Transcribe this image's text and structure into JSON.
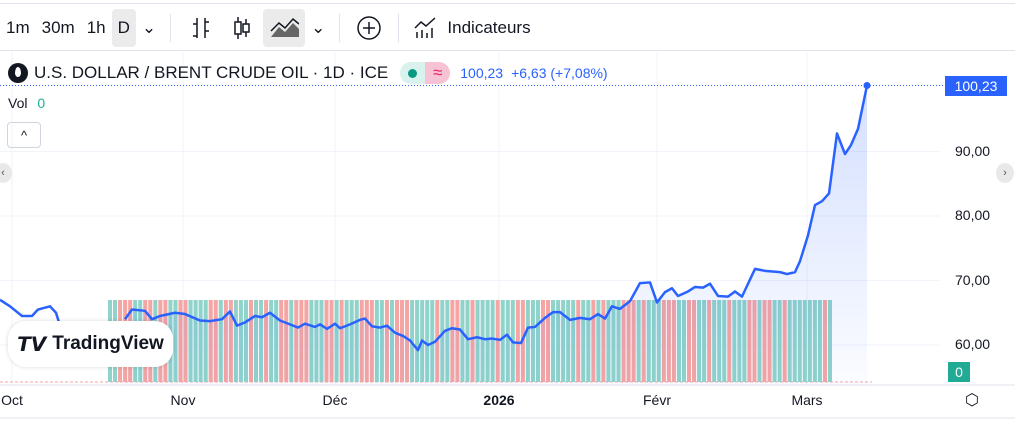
{
  "toolbar": {
    "intervals": [
      "1m",
      "30m",
      "1h",
      "D"
    ],
    "indicators_label": "Indicateurs"
  },
  "legend": {
    "title": "U.S. DOLLAR / BRENT CRUDE OIL · 1D · ICE",
    "last": "100,23",
    "change": "+6,63 (+7,08%)",
    "vol_label": "Vol",
    "vol_value": "0",
    "pill_icon": "≈"
  },
  "logo": "TradingView",
  "colors": {
    "line": "#2962ff",
    "up": "#8fd3cb",
    "down": "#f5a5a3",
    "vol_badge": "#22ab94"
  },
  "chart_data": {
    "type": "area",
    "title": "U.S. DOLLAR / BRENT CRUDE OIL · 1D · ICE",
    "ylim": [
      55,
      105
    ],
    "yticks": [
      "60,00",
      "70,00",
      "80,00",
      "90,00"
    ],
    "last_price_label": "100,23",
    "volume_label": "0",
    "xticks": [
      {
        "label": "Oct",
        "day": 2.4
      },
      {
        "label": "Nov",
        "day": 36.6
      },
      {
        "label": "Déc",
        "day": 67
      },
      {
        "label": "2026",
        "day": 99.8
      },
      {
        "label": "Févr",
        "day": 131.4
      },
      {
        "label": "Mars",
        "day": 161.4
      }
    ],
    "points": [
      [
        0,
        67
      ],
      [
        2,
        66
      ],
      [
        4.4,
        64.5
      ],
      [
        6.4,
        64.5
      ],
      [
        7.6,
        65.5
      ],
      [
        10,
        66
      ],
      [
        11.2,
        65
      ],
      [
        12,
        63
      ],
      [
        25,
        64
      ],
      [
        26.4,
        65.5
      ],
      [
        29,
        65.3
      ],
      [
        30.4,
        64
      ],
      [
        32,
        64.5
      ],
      [
        35,
        65
      ],
      [
        37,
        64.8
      ],
      [
        40,
        63.8
      ],
      [
        42,
        63.7
      ],
      [
        44.4,
        64
      ],
      [
        46,
        65.2
      ],
      [
        47.4,
        63
      ],
      [
        49,
        63.5
      ],
      [
        51,
        64.5
      ],
      [
        52.4,
        64.3
      ],
      [
        54,
        65
      ],
      [
        56,
        63.8
      ],
      [
        58,
        63.2
      ],
      [
        59.6,
        62.7
      ],
      [
        61,
        63.3
      ],
      [
        63,
        62.8
      ],
      [
        64,
        63.2
      ],
      [
        65.4,
        62.5
      ],
      [
        67,
        63.3
      ],
      [
        68,
        62.6
      ],
      [
        70,
        63.2
      ],
      [
        72,
        63.9
      ],
      [
        73,
        64.1
      ],
      [
        74.4,
        62.9
      ],
      [
        76,
        62.7
      ],
      [
        77.4,
        63
      ],
      [
        79,
        61.9
      ],
      [
        80.6,
        61.4
      ],
      [
        82,
        60.7
      ],
      [
        83.6,
        59.2
      ],
      [
        84.4,
        60.7
      ],
      [
        85.6,
        60
      ],
      [
        87,
        60.5
      ],
      [
        89,
        62.2
      ],
      [
        90.4,
        62.6
      ],
      [
        92,
        62.4
      ],
      [
        93.6,
        60.9
      ],
      [
        95.4,
        61.2
      ],
      [
        97,
        60.9
      ],
      [
        98.4,
        61
      ],
      [
        100,
        60.8
      ],
      [
        101.4,
        61.6
      ],
      [
        102.6,
        60.4
      ],
      [
        104.2,
        60.3
      ],
      [
        105.6,
        62.7
      ],
      [
        107,
        62.8
      ],
      [
        109,
        64.2
      ],
      [
        110.6,
        65.1
      ],
      [
        112,
        65.1
      ],
      [
        114,
        63.9
      ],
      [
        116,
        64.2
      ],
      [
        118,
        64
      ],
      [
        119.6,
        64.8
      ],
      [
        121,
        64.1
      ],
      [
        122.4,
        66
      ],
      [
        124,
        65.6
      ],
      [
        126,
        66.8
      ],
      [
        128,
        69.6
      ],
      [
        130,
        69.7
      ],
      [
        131.4,
        66.6
      ],
      [
        133,
        68.2
      ],
      [
        134.4,
        68.8
      ],
      [
        135.6,
        67.6
      ],
      [
        137.6,
        68.3
      ],
      [
        139,
        69
      ],
      [
        140.6,
        68.9
      ],
      [
        142,
        69.5
      ],
      [
        143.6,
        67.6
      ],
      [
        145.6,
        67.5
      ],
      [
        147,
        68.3
      ],
      [
        148.4,
        67.5
      ],
      [
        151,
        71.8
      ],
      [
        153,
        71.5
      ],
      [
        156,
        71.3
      ],
      [
        157.4,
        71
      ],
      [
        159,
        71.3
      ],
      [
        160,
        73
      ],
      [
        161.6,
        77
      ],
      [
        163,
        81.7
      ],
      [
        164.4,
        82.3
      ],
      [
        165.8,
        83.5
      ],
      [
        167.4,
        92.8
      ],
      [
        169,
        89.6
      ],
      [
        170.2,
        91
      ],
      [
        171.6,
        93.5
      ],
      [
        173.4,
        100.23
      ]
    ],
    "volume": {
      "start_day": 21.6,
      "end_day": 166.6,
      "directions": "uuddduuddudduudduuuuddudduuuduuduudduddduuudduduuuddduududdduuuuuduudduuduuuuduuudduuudduuuuuduududuuuddduduuuddduudduuduuuduuuddudduuduuuuuuudu"
    }
  }
}
